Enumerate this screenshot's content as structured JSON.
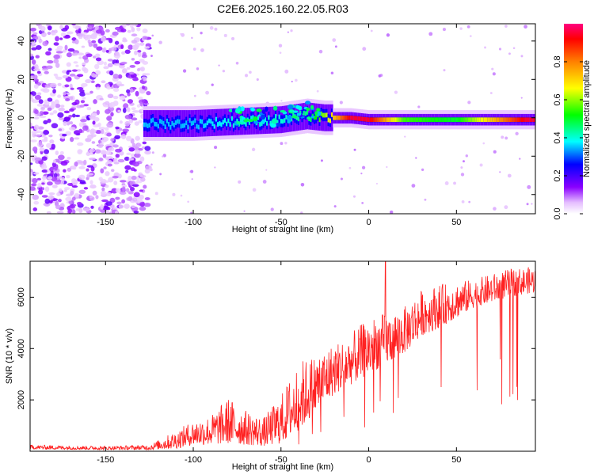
{
  "title": "C2E6.2025.160.22.05.R03",
  "chart_data": [
    {
      "type": "heatmap",
      "xlabel": "Height of straight line (km)",
      "ylabel": "Frequency (Hz)",
      "xlim": [
        -193,
        95
      ],
      "ylim": [
        -50,
        49
      ],
      "xticks": [
        "-150",
        "-100",
        "-50",
        "0",
        "50"
      ],
      "xtick_values": [
        -150,
        -100,
        -50,
        0,
        50
      ],
      "yticks": [
        "-40",
        "-20",
        "0",
        "20",
        "40"
      ],
      "ytick_values": [
        -40,
        -20,
        0,
        20,
        40
      ],
      "colorbar": {
        "label": "Normalized spectral amplitude",
        "range": [
          0,
          1
        ],
        "ticks": [
          "0.0",
          "0.2",
          "0.4",
          "0.6",
          "0.8"
        ],
        "tick_values": [
          0.0,
          0.2,
          0.4,
          0.6,
          0.8
        ],
        "colormap": [
          "#ffffff",
          "#e0b0ff",
          "#8000ff",
          "#0000ff",
          "#00ffff",
          "#00ff00",
          "#ffff00",
          "#ff8000",
          "#ff0000",
          "#ff0080"
        ]
      },
      "ridge": {
        "description_points_x": [
          -125,
          -100,
          -75,
          -50,
          -35,
          -25,
          -10,
          0,
          20,
          50,
          90
        ],
        "frequency_y": [
          -3,
          -3,
          -2,
          -1,
          1,
          0,
          0,
          -1,
          -1,
          -1,
          -1
        ],
        "peak_amplitude": [
          0.35,
          0.35,
          0.4,
          0.4,
          0.45,
          0.6,
          0.95,
          0.95,
          0.55,
          0.5,
          0.95
        ]
      }
    },
    {
      "type": "line",
      "xlabel": "Height of straight line (km)",
      "ylabel": "SNR (10 * v/v)",
      "xlim": [
        -193,
        95
      ],
      "ylim": [
        0,
        7400
      ],
      "xticks": [
        "-150",
        "-100",
        "-50",
        "0",
        "50"
      ],
      "xtick_values": [
        -150,
        -100,
        -50,
        0,
        50
      ],
      "yticks": [
        "2000",
        "4000",
        "6000"
      ],
      "ytick_values": [
        2000,
        4000,
        6000
      ],
      "color": "#ff2020",
      "envelope": {
        "x": [
          -193,
          -150,
          -125,
          -110,
          -100,
          -90,
          -80,
          -70,
          -60,
          -50,
          -40,
          -30,
          -20,
          -10,
          0,
          10,
          20,
          30,
          40,
          50,
          60,
          70,
          80,
          95
        ],
        "low": [
          80,
          60,
          60,
          100,
          250,
          250,
          300,
          250,
          200,
          300,
          800,
          1500,
          2200,
          2600,
          3000,
          3400,
          3800,
          4500,
          4800,
          5200,
          5600,
          5800,
          6000,
          6200
        ],
        "high": [
          250,
          200,
          250,
          800,
          1200,
          1400,
          2100,
          1600,
          1300,
          2200,
          3500,
          3800,
          4200,
          4600,
          5200,
          5400,
          5600,
          6300,
          6500,
          6600,
          6700,
          6900,
          7100,
          7200
        ]
      }
    }
  ]
}
